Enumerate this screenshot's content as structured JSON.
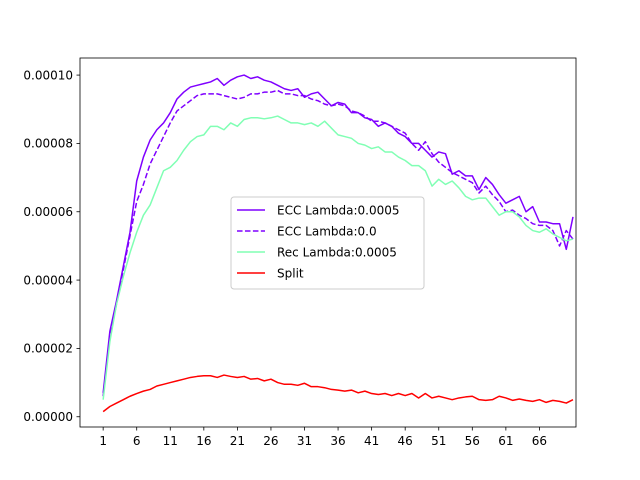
{
  "chart_data": {
    "type": "line",
    "x_start": 1,
    "xticks": [
      "1",
      "6",
      "11",
      "16",
      "21",
      "26",
      "31",
      "36",
      "41",
      "46",
      "51",
      "56",
      "61",
      "66"
    ],
    "xlim": [
      -2.45,
      71.45
    ],
    "yticks": [
      "0.00000",
      "0.00002",
      "0.00004",
      "0.00006",
      "0.00008",
      "0.00010"
    ],
    "ylim": [
      -3e-06,
      0.000105
    ],
    "legend_position": "center",
    "series": [
      {
        "name": "ECC Lambda:0.0005",
        "color": "#7f00ff",
        "dash": "solid",
        "values": [
          7e-06,
          2.5e-05,
          3.4e-05,
          4.4e-05,
          5.4e-05,
          6.9e-05,
          7.6e-05,
          8.1e-05,
          8.4e-05,
          8.6e-05,
          8.9e-05,
          9.3e-05,
          9.5e-05,
          9.65e-05,
          9.7e-05,
          9.75e-05,
          9.8e-05,
          9.9e-05,
          9.7e-05,
          9.85e-05,
          9.95e-05,
          0.0001,
          9.9e-05,
          9.95e-05,
          9.85e-05,
          9.8e-05,
          9.7e-05,
          9.6e-05,
          9.55e-05,
          9.6e-05,
          9.35e-05,
          9.45e-05,
          9.5e-05,
          9.3e-05,
          9.1e-05,
          9.2e-05,
          9.15e-05,
          8.9e-05,
          8.9e-05,
          8.75e-05,
          8.7e-05,
          8.5e-05,
          8.6e-05,
          8.5e-05,
          8.3e-05,
          8.2e-05,
          8e-05,
          8e-05,
          7.8e-05,
          7.6e-05,
          7.75e-05,
          7.7e-05,
          7.1e-05,
          7.2e-05,
          7.05e-05,
          7.05e-05,
          6.65e-05,
          7e-05,
          6.8e-05,
          6.5e-05,
          6.25e-05,
          6.35e-05,
          6.45e-05,
          6e-05,
          6.15e-05,
          5.7e-05,
          5.7e-05,
          5.65e-05,
          5.65e-05,
          4.9e-05,
          5.85e-05
        ]
      },
      {
        "name": "ECC Lambda:0.0",
        "color": "#7f00ff",
        "dash": "dashed",
        "values": [
          6e-06,
          2.4e-05,
          3.3e-05,
          4.3e-05,
          5.3e-05,
          6.3e-05,
          6.8e-05,
          7.4e-05,
          7.8e-05,
          8.2e-05,
          8.6e-05,
          8.95e-05,
          9.1e-05,
          9.25e-05,
          9.4e-05,
          9.45e-05,
          9.45e-05,
          9.45e-05,
          9.4e-05,
          9.35e-05,
          9.3e-05,
          9.35e-05,
          9.45e-05,
          9.45e-05,
          9.5e-05,
          9.5e-05,
          9.55e-05,
          9.45e-05,
          9.45e-05,
          9.4e-05,
          9.4e-05,
          9.3e-05,
          9.25e-05,
          9.15e-05,
          9.1e-05,
          9.15e-05,
          9.1e-05,
          8.95e-05,
          8.9e-05,
          8.8e-05,
          8.65e-05,
          8.65e-05,
          8.6e-05,
          8.5e-05,
          8.4e-05,
          8.3e-05,
          8e-05,
          7.8e-05,
          8.05e-05,
          7.7e-05,
          7.45e-05,
          7.3e-05,
          7.15e-05,
          7.05e-05,
          6.95e-05,
          6.85e-05,
          6.55e-05,
          6.75e-05,
          6.5e-05,
          6.3e-05,
          6e-05,
          6.05e-05,
          5.9e-05,
          5.8e-05,
          5.65e-05,
          5.6e-05,
          5.6e-05,
          5.45e-05,
          5e-05,
          5.45e-05,
          5.2e-05
        ]
      },
      {
        "name": "Rec Lambda:0.0005",
        "color": "#80ffb4",
        "dash": "solid",
        "values": [
          5e-06,
          2.2e-05,
          3.3e-05,
          4.1e-05,
          4.8e-05,
          5.4e-05,
          5.9e-05,
          6.2e-05,
          6.7e-05,
          7.2e-05,
          7.3e-05,
          7.5e-05,
          7.8e-05,
          8.05e-05,
          8.2e-05,
          8.25e-05,
          8.5e-05,
          8.5e-05,
          8.4e-05,
          8.6e-05,
          8.5e-05,
          8.7e-05,
          8.75e-05,
          8.75e-05,
          8.72e-05,
          8.75e-05,
          8.8e-05,
          8.7e-05,
          8.6e-05,
          8.6e-05,
          8.55e-05,
          8.6e-05,
          8.5e-05,
          8.65e-05,
          8.45e-05,
          8.25e-05,
          8.2e-05,
          8.15e-05,
          8e-05,
          7.95e-05,
          7.85e-05,
          7.9e-05,
          7.75e-05,
          7.75e-05,
          7.6e-05,
          7.5e-05,
          7.35e-05,
          7.35e-05,
          7.2e-05,
          6.75e-05,
          6.95e-05,
          6.8e-05,
          6.9e-05,
          6.7e-05,
          6.45e-05,
          6.35e-05,
          6.4e-05,
          6.4e-05,
          6.15e-05,
          5.9e-05,
          6e-05,
          6e-05,
          5.85e-05,
          5.6e-05,
          5.45e-05,
          5.4e-05,
          5.5e-05,
          5.35e-05,
          5.25e-05,
          5.15e-05,
          5.2e-05
        ]
      },
      {
        "name": "Split",
        "color": "#ff0000",
        "dash": "solid",
        "values": [
          1.5e-06,
          3e-06,
          4e-06,
          5e-06,
          6e-06,
          6.8e-06,
          7.5e-06,
          8e-06,
          9e-06,
          9.5e-06,
          1e-05,
          1.05e-05,
          1.1e-05,
          1.15e-05,
          1.18e-05,
          1.2e-05,
          1.2e-05,
          1.15e-05,
          1.22e-05,
          1.18e-05,
          1.15e-05,
          1.18e-05,
          1.1e-05,
          1.12e-05,
          1.05e-05,
          1.1e-05,
          1e-05,
          9.5e-06,
          9.5e-06,
          9.2e-06,
          9.8e-06,
          8.8e-06,
          8.8e-06,
          8.5e-06,
          8e-06,
          7.8e-06,
          7.5e-06,
          7.8e-06,
          7e-06,
          7.5e-06,
          6.8e-06,
          6.5e-06,
          6.8e-06,
          6.2e-06,
          6.8e-06,
          6.2e-06,
          6.8e-06,
          5.5e-06,
          6.8e-06,
          5.5e-06,
          6e-06,
          5.5e-06,
          5e-06,
          5.5e-06,
          5.8e-06,
          6e-06,
          5e-06,
          4.8e-06,
          5e-06,
          6e-06,
          5.5e-06,
          4.8e-06,
          5.2e-06,
          4.8e-06,
          4.5e-06,
          5e-06,
          4.2e-06,
          4.8e-06,
          4.5e-06,
          4e-06,
          5e-06
        ]
      }
    ]
  }
}
